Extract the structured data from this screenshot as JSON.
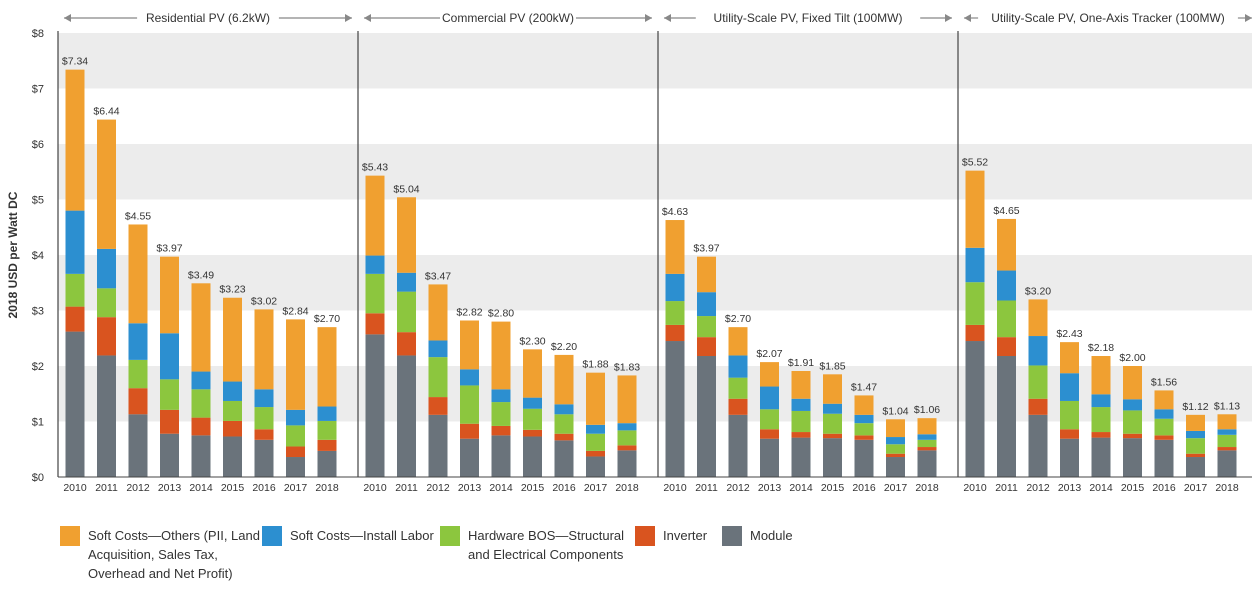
{
  "chart_data": {
    "type": "bar",
    "stacked": true,
    "ylabel": "2018 USD per Watt DC",
    "ylim": [
      0,
      8
    ],
    "yticks": [
      "$0",
      "$1",
      "$2",
      "$3",
      "$4",
      "$5",
      "$6",
      "$7",
      "$8"
    ],
    "categories": [
      "2010",
      "2011",
      "2012",
      "2013",
      "2014",
      "2015",
      "2016",
      "2017",
      "2018"
    ],
    "grid": "alternating horizontal bands",
    "legend_position": "bottom",
    "legend": [
      {
        "key": "others",
        "label": "Soft Costs—Others (PII, Land\nAcquisition, Sales Tax,\nOverhead and Net Profit)",
        "color": "#f0a030"
      },
      {
        "key": "labor",
        "label": "Soft Costs—Install Labor",
        "color": "#2c8fd0"
      },
      {
        "key": "bos",
        "label": "Hardware BOS—Structural\nand Electrical Components",
        "color": "#8cc63e"
      },
      {
        "key": "inverter",
        "label": "Inverter",
        "color": "#d9541f"
      },
      {
        "key": "module",
        "label": "Module",
        "color": "#6a737b"
      }
    ],
    "panels": [
      {
        "title": "Residential PV (6.2kW)",
        "totals": [
          "$7.34",
          "$6.44",
          "$4.55",
          "$3.97",
          "$3.49",
          "$3.23",
          "$3.02",
          "$2.84",
          "$2.70"
        ],
        "series": {
          "module": [
            2.62,
            2.19,
            1.13,
            0.78,
            0.75,
            0.73,
            0.67,
            0.36,
            0.47
          ],
          "inverter": [
            0.45,
            0.69,
            0.47,
            0.43,
            0.32,
            0.28,
            0.19,
            0.19,
            0.2
          ],
          "bos": [
            0.59,
            0.52,
            0.51,
            0.55,
            0.51,
            0.36,
            0.4,
            0.38,
            0.34
          ],
          "labor": [
            1.14,
            0.71,
            0.66,
            0.83,
            0.32,
            0.35,
            0.32,
            0.28,
            0.26
          ],
          "others": [
            2.54,
            2.33,
            1.78,
            1.38,
            1.59,
            1.51,
            1.44,
            1.63,
            1.43
          ]
        }
      },
      {
        "title": "Commercial PV (200kW)",
        "totals": [
          "$5.43",
          "$5.04",
          "$3.47",
          "$2.82",
          "$2.80",
          "$2.30",
          "$2.20",
          "$1.88",
          "$1.83"
        ],
        "series": {
          "module": [
            2.57,
            2.19,
            1.12,
            0.69,
            0.75,
            0.73,
            0.66,
            0.37,
            0.48
          ],
          "inverter": [
            0.38,
            0.42,
            0.32,
            0.27,
            0.17,
            0.12,
            0.12,
            0.1,
            0.09
          ],
          "bos": [
            0.71,
            0.73,
            0.72,
            0.69,
            0.43,
            0.38,
            0.35,
            0.31,
            0.27
          ],
          "labor": [
            0.33,
            0.34,
            0.3,
            0.29,
            0.23,
            0.2,
            0.18,
            0.16,
            0.13
          ],
          "others": [
            1.44,
            1.36,
            1.01,
            0.88,
            1.22,
            0.87,
            0.89,
            0.94,
            0.86
          ]
        }
      },
      {
        "title": "Utility-Scale PV, Fixed Tilt (100MW)",
        "totals": [
          "$4.63",
          "$3.97",
          "$2.70",
          "$2.07",
          "$1.91",
          "$1.85",
          "$1.47",
          "$1.04",
          "$1.06"
        ],
        "series": {
          "module": [
            2.45,
            2.18,
            1.12,
            0.69,
            0.71,
            0.7,
            0.67,
            0.36,
            0.48
          ],
          "inverter": [
            0.29,
            0.34,
            0.29,
            0.17,
            0.1,
            0.08,
            0.08,
            0.06,
            0.06
          ],
          "bos": [
            0.43,
            0.38,
            0.38,
            0.36,
            0.38,
            0.36,
            0.22,
            0.17,
            0.13
          ],
          "labor": [
            0.49,
            0.43,
            0.4,
            0.41,
            0.22,
            0.18,
            0.15,
            0.13,
            0.1
          ],
          "others": [
            0.97,
            0.64,
            0.51,
            0.44,
            0.5,
            0.53,
            0.35,
            0.32,
            0.29
          ]
        }
      },
      {
        "title": "Utility-Scale PV, One-Axis Tracker (100MW)",
        "totals": [
          "$5.52",
          "$4.65",
          "$3.20",
          "$2.43",
          "$2.18",
          "$2.00",
          "$1.56",
          "$1.12",
          "$1.13"
        ],
        "series": {
          "module": [
            2.45,
            2.18,
            1.12,
            0.69,
            0.71,
            0.7,
            0.67,
            0.36,
            0.48
          ],
          "inverter": [
            0.29,
            0.34,
            0.29,
            0.17,
            0.1,
            0.08,
            0.08,
            0.06,
            0.06
          ],
          "bos": [
            0.77,
            0.66,
            0.6,
            0.51,
            0.45,
            0.42,
            0.3,
            0.28,
            0.22
          ],
          "labor": [
            0.62,
            0.54,
            0.53,
            0.5,
            0.23,
            0.2,
            0.17,
            0.13,
            0.1
          ],
          "others": [
            1.39,
            0.93,
            0.66,
            0.56,
            0.69,
            0.6,
            0.34,
            0.29,
            0.27
          ]
        }
      }
    ]
  }
}
